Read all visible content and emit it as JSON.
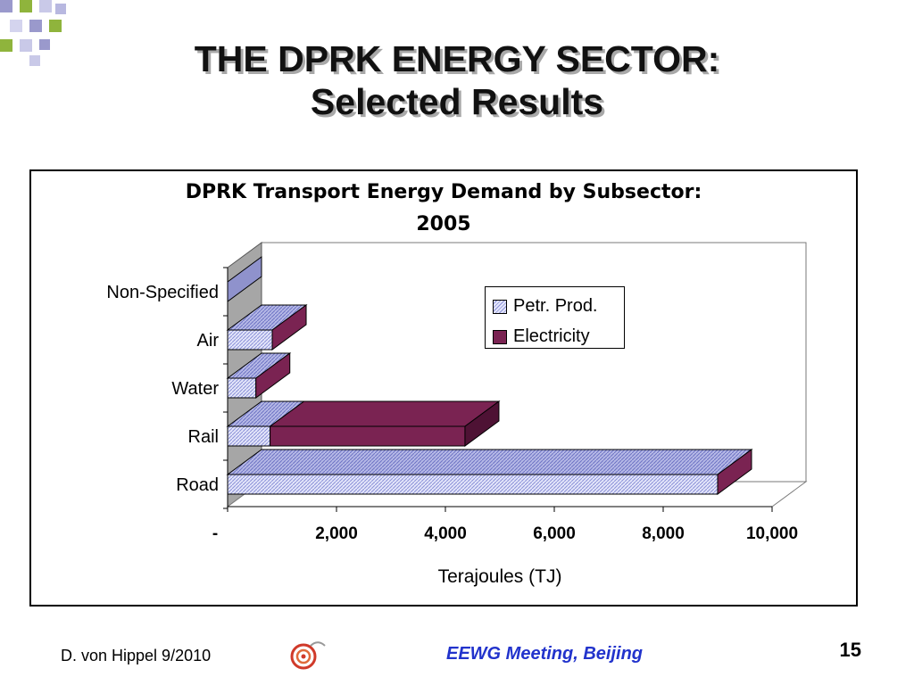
{
  "slide": {
    "title_line1": "THE DPRK ENERGY SECTOR:",
    "title_line2": "Selected Results",
    "footer_author": "D. von Hippel  9/2010",
    "footer_event": "EEWG Meeting, Beijing",
    "page_number": "15",
    "colors": {
      "deco_green": "#8fb43c",
      "deco_purple": "#9a99cc",
      "footer_text": "#2233cc"
    }
  },
  "chart_data": {
    "type": "bar",
    "orientation": "horizontal",
    "stacked": true,
    "three_d": true,
    "title_line1": "DPRK Transport Energy Demand by Subsector:",
    "title_line2": "2005",
    "xlabel": "Terajoules (TJ)",
    "ylabel": "",
    "xlim": [
      0,
      10000
    ],
    "x_ticks": [
      "-",
      "2,000",
      "4,000",
      "6,000",
      "8,000",
      "10,000"
    ],
    "categories": [
      "Road",
      "Rail",
      "Water",
      "Air",
      "Non-Specified"
    ],
    "series": [
      {
        "name": "Petr. Prod.",
        "values": [
          9000,
          780,
          520,
          820,
          0
        ],
        "color": "#c9cdf0",
        "pattern": "hatch"
      },
      {
        "name": "Electricity",
        "values": [
          0,
          3580,
          0,
          0,
          0
        ],
        "color": "#7a2352",
        "pattern": "solid"
      }
    ],
    "grid": false,
    "legend": "upper-right"
  }
}
